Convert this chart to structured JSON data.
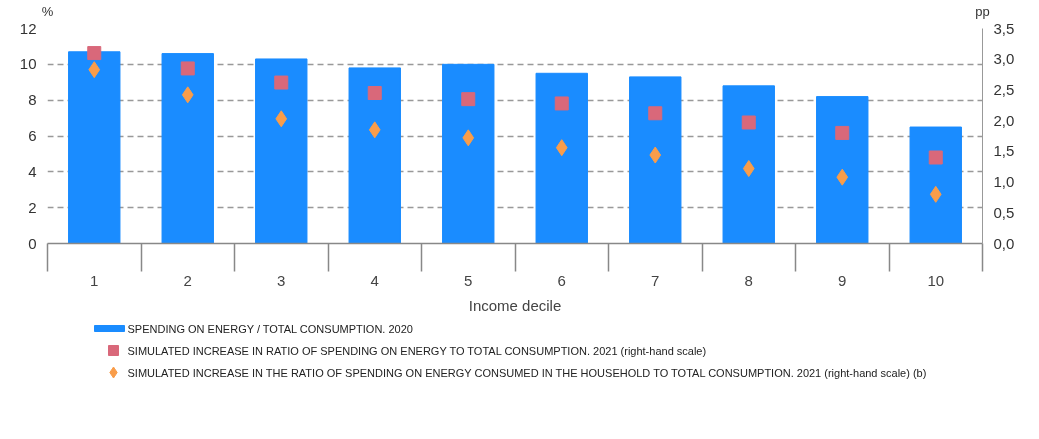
{
  "chart_data": {
    "type": "bar",
    "xlabel": "Income decile",
    "ylabel": "%",
    "y2label": "pp",
    "categories": [
      "1",
      "2",
      "3",
      "4",
      "5",
      "6",
      "7",
      "8",
      "9",
      "10"
    ],
    "series": [
      {
        "name": "SPENDING ON ENERGY / TOTAL CONSUMPTION. 2020",
        "color": "#1a8cff",
        "values": [
          10.7,
          10.6,
          10.3,
          9.8,
          10.0,
          9.5,
          9.3,
          8.8,
          8.2,
          6.5
        ]
      },
      {
        "name": "SIMULATED INCREASE IN RATIO OF SPENDING ON ENERGY TO TOTAL CONSUMPTION. 2021 (right-hand scale)",
        "color": "#d9687a",
        "type": "scatter",
        "marker": "square",
        "axis": "y2",
        "values": [
          3.1,
          2.85,
          2.62,
          2.45,
          2.35,
          2.28,
          2.12,
          1.97,
          1.8,
          1.4
        ]
      },
      {
        "name": "SIMULATED INCREASE IN THE RATIO OF SPENDING ON ENERGY CONSUMED IN THE HOUSEHOLD TO TOTAL CONSUMPTION. 2021 (right-hand scale) (b)",
        "color": "#f99d4a",
        "type": "scatter",
        "marker": "diamond",
        "axis": "y2",
        "values": [
          2.83,
          2.42,
          2.03,
          1.85,
          1.72,
          1.56,
          1.44,
          1.22,
          1.08,
          0.8
        ]
      }
    ],
    "ylim": [
      0,
      12
    ],
    "yticks": [
      0,
      2,
      4,
      6,
      8,
      10,
      12
    ],
    "y2lim": [
      0,
      3.5
    ],
    "y2ticks": [
      {
        "value": 0,
        "label": "0,0"
      },
      {
        "value": 0.5,
        "label": "0,5"
      },
      {
        "value": 1,
        "label": "1,0"
      },
      {
        "value": 1.5,
        "label": "1,5"
      },
      {
        "value": 2,
        "label": "2,0"
      },
      {
        "value": 2.5,
        "label": "2,5"
      },
      {
        "value": 3,
        "label": "3,0"
      },
      {
        "value": 3.5,
        "label": "3,5"
      }
    ],
    "grid": "y",
    "legend": "bottom"
  }
}
